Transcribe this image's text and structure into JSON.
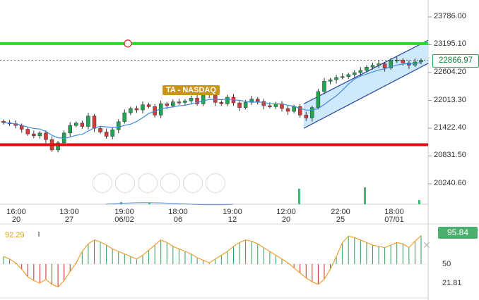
{
  "chart_data": {
    "type": "candlestick",
    "title": "",
    "badge": "TA - NASDAQ",
    "last_price": "22866.97",
    "y_ticks": [
      "23786.00",
      "23195.10",
      "22604.20",
      "22013.30",
      "21422.40",
      "20831.50",
      "20240.60"
    ],
    "y_range": [
      20000,
      24000
    ],
    "x_ticks": [
      {
        "time": "16:00",
        "date": "20"
      },
      {
        "time": "13:00",
        "date": "27"
      },
      {
        "time": "19:00",
        "date": "06/02"
      },
      {
        "time": "18:00",
        "date": "06"
      },
      {
        "time": "19:00",
        "date": "12"
      },
      {
        "time": "12:00",
        "date": "20"
      },
      {
        "time": "22:00",
        "date": "25"
      },
      {
        "time": "18:00",
        "date": "07/01"
      }
    ],
    "resistance_level": 23220,
    "support_level": 21070,
    "closes": [
      21540,
      21520,
      21480,
      21400,
      21300,
      21260,
      21320,
      21180,
      20960,
      21110,
      21320,
      21480,
      21530,
      21460,
      21680,
      21420,
      21340,
      21250,
      21390,
      21560,
      21750,
      21840,
      21810,
      21920,
      21880,
      21700,
      21940,
      21900,
      21980,
      21970,
      22000,
      22060,
      21940,
      22160,
      22130,
      21970,
      21940,
      22080,
      21960,
      21860,
      21970,
      22040,
      21990,
      21900,
      21880,
      21940,
      21840,
      21780,
      21880,
      21700,
      21640,
      21860,
      22200,
      22420,
      22450,
      22500,
      22520,
      22560,
      22600,
      22650,
      22720,
      22760,
      22790,
      22700,
      22860,
      22870,
      22810,
      22760,
      22830,
      22866
    ],
    "channel": {
      "start": [
        21420,
        21940
      ],
      "end": [
        22800,
        23290
      ]
    },
    "oscillator": {
      "current": "95.84",
      "left_value": "92.29",
      "levels": [
        "50",
        "21.81"
      ],
      "range": [
        0,
        100
      ],
      "line": [
        62,
        58,
        52,
        42,
        30,
        24,
        20,
        26,
        18,
        14,
        24,
        38,
        52,
        70,
        82,
        88,
        85,
        80,
        74,
        70,
        66,
        62,
        58,
        64,
        72,
        80,
        88,
        84,
        78,
        74,
        70,
        66,
        60,
        56,
        52,
        58,
        64,
        70,
        78,
        84,
        88,
        86,
        82,
        76,
        70,
        64,
        58,
        52,
        44,
        36,
        28,
        22,
        18,
        26,
        42,
        62,
        84,
        94,
        92,
        88,
        84,
        80,
        78,
        76,
        80,
        84,
        82,
        76,
        86,
        95
      ]
    }
  }
}
